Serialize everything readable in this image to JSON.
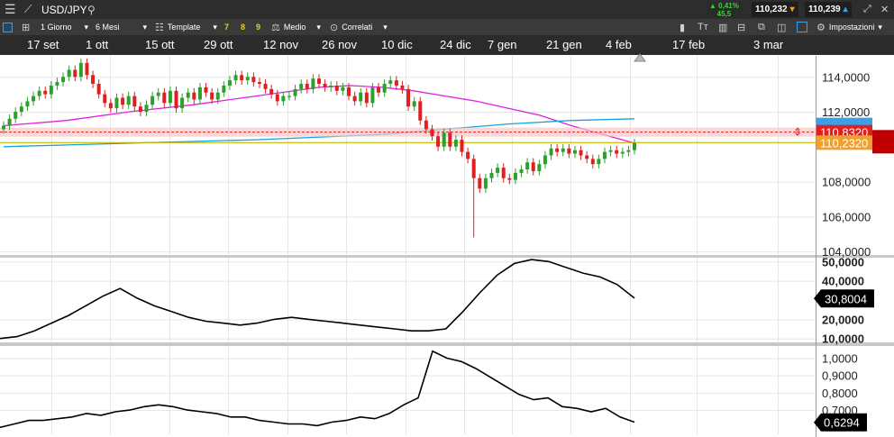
{
  "topbar": {
    "symbol": "USD/JPY",
    "change_pct": "▲ 0,41%",
    "change_pts": "45,5",
    "bid": "110,232",
    "ask": "110,239"
  },
  "toolbar": {
    "interval": "1 Giorno",
    "range": "6 Mesi",
    "template": "Template",
    "n1": "7",
    "n2": "8",
    "n3": "9",
    "indicator": "Medio",
    "related": "Correlati",
    "settings": "Impostazioni"
  },
  "dates": [
    "17 set",
    "1 ott",
    "15 ott",
    "29 ott",
    "12 nov",
    "26 nov",
    "10 dic",
    "24 dic",
    "7 gen",
    "21 gen",
    "4 feb",
    "17 feb",
    "3 mar"
  ],
  "colors": {
    "up": "#2ca02c",
    "down": "#e02020",
    "ma1": "#e020e0",
    "ma2": "#1aa0e0",
    "level": "#c8b400",
    "accent": "#3aa0e8"
  },
  "chart_data": [
    {
      "type": "candlestick",
      "ylim": [
        103.8,
        115.2
      ],
      "yticks": [
        "114,0000",
        "112,0000",
        "108,0000",
        "106,0000",
        "104,0000"
      ],
      "ytick_values": [
        114,
        112,
        108,
        106,
        104
      ],
      "close": [
        111.2,
        111.6,
        112.0,
        112.3,
        112.6,
        112.9,
        113.2,
        113.0,
        113.5,
        113.7,
        114.0,
        114.4,
        114.0,
        114.8,
        114.1,
        113.6,
        113.0,
        112.5,
        112.2,
        112.8,
        112.4,
        112.9,
        112.3,
        112.0,
        112.4,
        112.9,
        113.1,
        112.5,
        113.2,
        112.2,
        112.8,
        113.1,
        112.7,
        113.4,
        113.1,
        112.7,
        113.1,
        113.5,
        113.8,
        114.1,
        113.8,
        114.0,
        113.7,
        113.6,
        113.3,
        113.0,
        112.6,
        112.9,
        112.9,
        113.3,
        113.6,
        113.3,
        113.9,
        113.6,
        113.4,
        113.5,
        113.2,
        113.4,
        112.9,
        112.6,
        113.1,
        112.5,
        113.4,
        113.1,
        113.6,
        113.8,
        113.5,
        113.3,
        112.3,
        112.6,
        111.5,
        111.0,
        110.6,
        110.0,
        110.8,
        110.0,
        110.4,
        109.7,
        109.3,
        108.2,
        107.6,
        108.2,
        108.5,
        108.8,
        108.2,
        108.1,
        108.5,
        108.7,
        109.1,
        108.6,
        109.0,
        109.5,
        109.9,
        109.7,
        109.9,
        109.6,
        109.8,
        109.5,
        109.3,
        109.0,
        109.3,
        109.7,
        109.8,
        109.6,
        109.7,
        109.8,
        110.2
      ]
    },
    {
      "type": "line",
      "name": "ma1",
      "x": [
        0,
        0.1,
        0.2,
        0.3,
        0.4,
        0.5,
        0.55,
        0.6,
        0.65,
        0.7,
        0.75,
        0.8,
        0.85,
        0.9,
        1.0
      ],
      "y": [
        111.2,
        111.5,
        112.0,
        112.4,
        112.9,
        113.4,
        113.5,
        113.4,
        113.2,
        112.9,
        112.6,
        112.2,
        111.8,
        111.2,
        110.2
      ]
    },
    {
      "type": "line",
      "name": "ma2",
      "x": [
        0,
        0.2,
        0.4,
        0.6,
        0.7,
        0.8,
        0.9,
        1.0
      ],
      "y": [
        110.0,
        110.2,
        110.4,
        110.7,
        111.0,
        111.3,
        111.5,
        111.6
      ]
    },
    {
      "type": "hline",
      "levels": [
        {
          "value": 110.832,
          "label": "110,8320"
        },
        {
          "value": 110.232,
          "label": "110,2320"
        }
      ]
    },
    {
      "type": "line",
      "name": "indicator1",
      "ylim": [
        8,
        52
      ],
      "yticks": [
        "50,0000",
        "40,0000",
        "20,0000",
        "10,0000"
      ],
      "ytick_values": [
        50,
        40,
        20,
        10
      ],
      "last": "30,8004",
      "last_value": 30.8,
      "y": [
        10,
        11,
        14,
        18,
        22,
        27,
        32,
        36,
        31,
        27,
        24,
        21,
        19,
        18,
        17,
        18,
        20,
        21,
        20,
        19,
        18,
        17,
        16,
        15,
        14,
        14,
        15,
        24,
        34,
        43,
        49,
        51,
        50,
        47,
        44,
        42,
        38,
        31
      ]
    },
    {
      "type": "line",
      "name": "indicator2",
      "ylim": [
        0.56,
        1.07
      ],
      "yticks": [
        "1,0000",
        "0,9000",
        "0,8000",
        "0,7000"
      ],
      "ytick_values": [
        1.0,
        0.9,
        0.8,
        0.7
      ],
      "last": "0,6294",
      "last_value": 0.629,
      "y": [
        0.6,
        0.62,
        0.64,
        0.64,
        0.65,
        0.66,
        0.68,
        0.67,
        0.69,
        0.7,
        0.72,
        0.73,
        0.72,
        0.7,
        0.69,
        0.68,
        0.66,
        0.66,
        0.64,
        0.63,
        0.62,
        0.62,
        0.61,
        0.63,
        0.64,
        0.66,
        0.65,
        0.68,
        0.73,
        0.77,
        1.04,
        1.0,
        0.98,
        0.94,
        0.89,
        0.84,
        0.79,
        0.76,
        0.77,
        0.72,
        0.71,
        0.69,
        0.71,
        0.66,
        0.63
      ]
    }
  ]
}
